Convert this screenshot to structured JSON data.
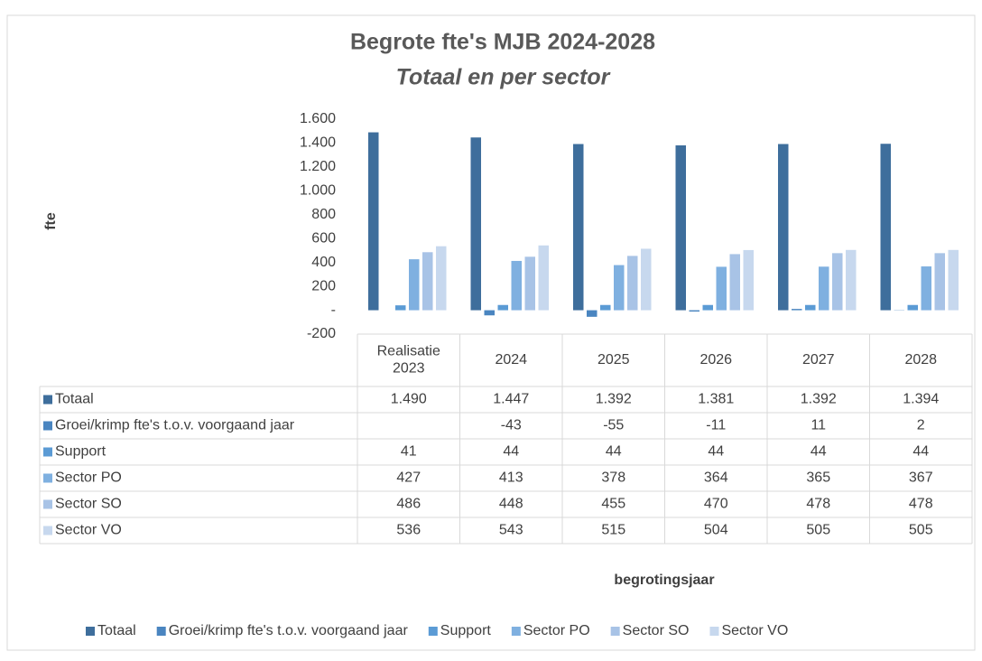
{
  "chart_data": {
    "type": "bar",
    "title": "Begrote fte's MJB 2024-2028",
    "subtitle": "Totaal en per sector",
    "y_label": "fte",
    "x_label": "begrotingsjaar",
    "categories": [
      "Realisatie 2023",
      "2024",
      "2025",
      "2026",
      "2027",
      "2028"
    ],
    "series": [
      {
        "name": "Totaal",
        "color": "#3e6e9c",
        "values": [
          1490,
          1447,
          1392,
          1381,
          1392,
          1394
        ],
        "value_labels": [
          "1.490",
          "1.447",
          "1.392",
          "1.381",
          "1.392",
          "1.394"
        ]
      },
      {
        "name": "Groei/krimp fte's t.o.v. voorgaand jaar",
        "color": "#4a85c0",
        "values": [
          null,
          -43,
          -55,
          -11,
          11,
          2
        ]
      },
      {
        "name": "Support",
        "color": "#5b9bd5",
        "values": [
          41,
          44,
          44,
          44,
          44,
          44
        ]
      },
      {
        "name": "Sector PO",
        "color": "#7fb0e0",
        "values": [
          427,
          413,
          378,
          364,
          365,
          367
        ]
      },
      {
        "name": "Sector SO",
        "color": "#a8c3e6",
        "values": [
          486,
          448,
          455,
          470,
          478,
          478
        ]
      },
      {
        "name": "Sector VO",
        "color": "#c7d8ee",
        "values": [
          536,
          543,
          515,
          504,
          505,
          505
        ]
      }
    ],
    "ylim": [
      -200,
      1600
    ],
    "yticks": [
      -200,
      {
        "value": 0,
        "label": "-"
      },
      200,
      400,
      600,
      800,
      {
        "value": 1000,
        "label": "1.000"
      },
      {
        "value": 1200,
        "label": "1.200"
      },
      {
        "value": 1400,
        "label": "1.400"
      },
      {
        "value": 1600,
        "label": "1.600"
      }
    ],
    "grid": false,
    "legend": "bottom"
  }
}
